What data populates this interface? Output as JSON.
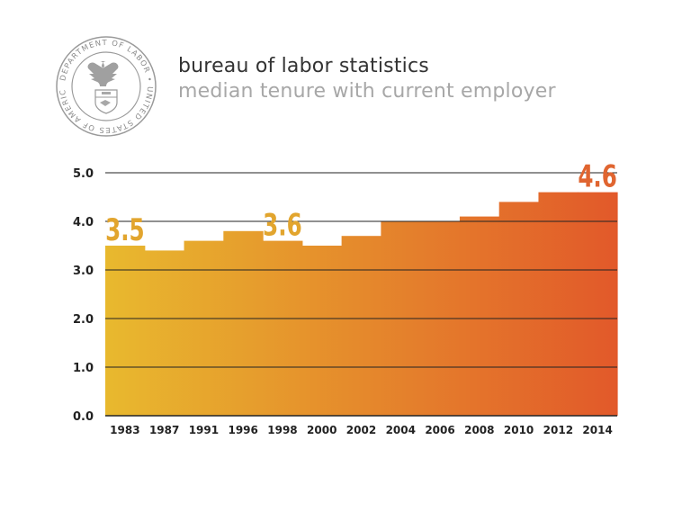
{
  "header": {
    "title": "bureau of labor statistics",
    "subtitle": "median tenure with current employer",
    "seal_text": "DEPARTMENT OF LABOR • UNITED STATES OF AMERICA"
  },
  "colors": {
    "bar_start": "#e8b92e",
    "bar_end": "#e2592a",
    "label_gold": "#e2a52e",
    "label_orange": "#e06530",
    "gridline": "#222222",
    "axis_text": "#222222"
  },
  "chart_data": {
    "type": "bar",
    "categories": [
      "1983",
      "1987",
      "1991",
      "1996",
      "1998",
      "2000",
      "2002",
      "2004",
      "2006",
      "2008",
      "2010",
      "2012",
      "2014"
    ],
    "values": [
      3.5,
      3.4,
      3.6,
      3.8,
      3.6,
      3.5,
      3.7,
      4.0,
      4.0,
      4.1,
      4.4,
      4.6,
      4.6
    ],
    "ylim": [
      0,
      5
    ],
    "yticks": [
      "0.0",
      "1.0",
      "2.0",
      "3.0",
      "4.0",
      "5.0"
    ],
    "grid": true,
    "annotations": [
      {
        "category": "1983",
        "text": "3.5",
        "color": "gold"
      },
      {
        "category": "1998",
        "text": "3.6",
        "color": "gold"
      },
      {
        "category": "2014",
        "text": "4.6",
        "color": "orange"
      }
    ]
  }
}
